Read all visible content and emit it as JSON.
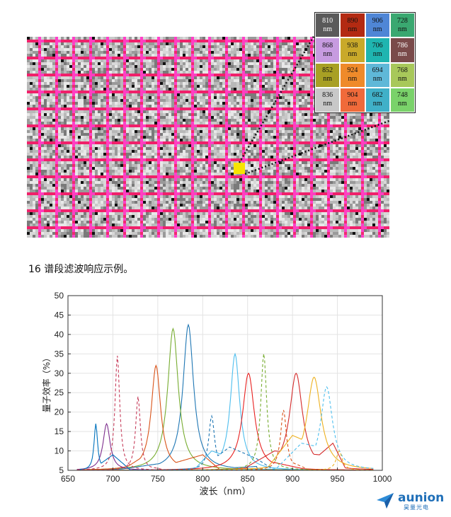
{
  "filter_grid": {
    "unit": "nm",
    "cells": [
      {
        "value": "810",
        "color": "#5a5a5a",
        "text_color": "#ffffff"
      },
      {
        "value": "890",
        "color": "#b32a12",
        "text_color": "#111111"
      },
      {
        "value": "906",
        "color": "#4f86d6",
        "text_color": "#111111"
      },
      {
        "value": "728",
        "color": "#3aa870",
        "text_color": "#111111"
      },
      {
        "value": "868",
        "color": "#c79be0",
        "text_color": "#111111"
      },
      {
        "value": "938",
        "color": "#c9a92a",
        "text_color": "#111111"
      },
      {
        "value": "706",
        "color": "#1fb5b0",
        "text_color": "#111111"
      },
      {
        "value": "786",
        "color": "#7a4a4a",
        "text_color": "#ffffff"
      },
      {
        "value": "852",
        "color": "#a8a024",
        "text_color": "#111111"
      },
      {
        "value": "924",
        "color": "#ef8a2a",
        "text_color": "#111111"
      },
      {
        "value": "694",
        "color": "#5fb8d8",
        "text_color": "#111111"
      },
      {
        "value": "768",
        "color": "#a8c85a",
        "text_color": "#111111"
      },
      {
        "value": "836",
        "color": "#c8c8c8",
        "text_color": "#111111"
      },
      {
        "value": "904",
        "color": "#f06a3a",
        "text_color": "#111111"
      },
      {
        "value": "682",
        "color": "#40b0c8",
        "text_color": "#111111"
      },
      {
        "value": "748",
        "color": "#7ad26a",
        "text_color": "#111111"
      }
    ]
  },
  "caption": "16 谱段滤波响应示例。",
  "chart_data": {
    "type": "line",
    "xlabel": "波长（nm）",
    "ylabel": "量子效率（%）",
    "xlim": [
      650,
      1000
    ],
    "ylim": [
      5,
      50
    ],
    "xticks": [
      650,
      700,
      750,
      800,
      850,
      900,
      950,
      1000
    ],
    "yticks": [
      5,
      10,
      15,
      20,
      25,
      30,
      35,
      40,
      45,
      50
    ],
    "grid": true,
    "series": [
      {
        "color": "#1f77b4",
        "dash": false,
        "peaks": [
          [
            784,
            42.5,
            9
          ]
        ],
        "baseline": [
          [
            700,
            5
          ],
          [
            730,
            6
          ],
          [
            760,
            7
          ],
          [
            820,
            5.5
          ],
          [
            860,
            6
          ]
        ]
      },
      {
        "color": "#77ac30",
        "dash": false,
        "peaks": [
          [
            767,
            41.5,
            9
          ]
        ],
        "baseline": [
          [
            720,
            5
          ],
          [
            750,
            8
          ],
          [
            790,
            6
          ],
          [
            830,
            5
          ]
        ]
      },
      {
        "color": "#d95319",
        "dash": false,
        "peaks": [
          [
            748,
            32,
            8
          ]
        ],
        "baseline": [
          [
            710,
            5
          ],
          [
            730,
            8
          ],
          [
            770,
            7
          ],
          [
            800,
            9
          ],
          [
            820,
            5
          ]
        ]
      },
      {
        "color": "#4dbeee",
        "dash": false,
        "peaks": [
          [
            836,
            35,
            8
          ]
        ],
        "baseline": [
          [
            790,
            5
          ],
          [
            810,
            10
          ],
          [
            860,
            6
          ],
          [
            900,
            5
          ]
        ]
      },
      {
        "color": "#e8201f",
        "dash": false,
        "peaks": [
          [
            851,
            30,
            10
          ]
        ],
        "baseline": [
          [
            810,
            5
          ],
          [
            830,
            6
          ],
          [
            880,
            7
          ],
          [
            920,
            5
          ]
        ]
      },
      {
        "color": "#d42a2a",
        "dash": false,
        "peaks": [
          [
            904,
            30,
            11
          ]
        ],
        "baseline": [
          [
            850,
            6
          ],
          [
            880,
            10
          ],
          [
            930,
            9
          ],
          [
            945,
            12
          ],
          [
            960,
            5
          ]
        ]
      },
      {
        "color": "#edb120",
        "dash": false,
        "peaks": [
          [
            924,
            29,
            12
          ]
        ],
        "baseline": [
          [
            870,
            5
          ],
          [
            900,
            14
          ],
          [
            940,
            10
          ],
          [
            955,
            6
          ]
        ]
      },
      {
        "color": "#7e2f8e",
        "dash": false,
        "peaks": [
          [
            693,
            17,
            6
          ]
        ],
        "baseline": [
          [
            680,
            5
          ],
          [
            710,
            5
          ]
        ]
      },
      {
        "color": "#0072bd",
        "dash": false,
        "peaks": [
          [
            681,
            17,
            3
          ]
        ],
        "baseline": [
          [
            676,
            5
          ],
          [
            700,
            9
          ],
          [
            720,
            5
          ]
        ]
      },
      {
        "color": "#c63c5a",
        "dash": true,
        "peaks": [
          [
            705,
            34.5,
            4
          ]
        ],
        "baseline": [
          [
            690,
            5
          ],
          [
            720,
            5
          ]
        ]
      },
      {
        "color": "#c63c5a",
        "dash": true,
        "peaks": [
          [
            728,
            24,
            4
          ]
        ],
        "baseline": [
          [
            715,
            5
          ],
          [
            740,
            6
          ],
          [
            760,
            5
          ]
        ]
      },
      {
        "color": "#1f77b4",
        "dash": true,
        "peaks": [
          [
            810,
            19,
            5
          ]
        ],
        "baseline": [
          [
            795,
            5
          ],
          [
            830,
            11
          ],
          [
            860,
            8
          ],
          [
            880,
            5
          ]
        ]
      },
      {
        "color": "#77ac30",
        "dash": true,
        "peaks": [
          [
            868,
            35,
            5
          ]
        ],
        "baseline": [
          [
            845,
            5
          ],
          [
            880,
            6
          ],
          [
            900,
            5
          ]
        ]
      },
      {
        "color": "#d95319",
        "dash": true,
        "peaks": [
          [
            890,
            20.5,
            5
          ]
        ],
        "baseline": [
          [
            870,
            5
          ],
          [
            900,
            7
          ],
          [
            920,
            5
          ]
        ]
      },
      {
        "color": "#4dbeee",
        "dash": true,
        "peaks": [
          [
            938,
            26.5,
            10
          ]
        ],
        "baseline": [
          [
            880,
            5
          ],
          [
            910,
            12
          ],
          [
            950,
            10
          ],
          [
            965,
            5
          ]
        ]
      },
      {
        "color": "#edb120",
        "dash": true,
        "peaks": [
          [
            952,
            10,
            5
          ]
        ],
        "baseline": [
          [
            940,
            5
          ],
          [
            965,
            5
          ]
        ]
      }
    ]
  },
  "logo": {
    "name": "aunion",
    "sub": "昊量光电"
  }
}
